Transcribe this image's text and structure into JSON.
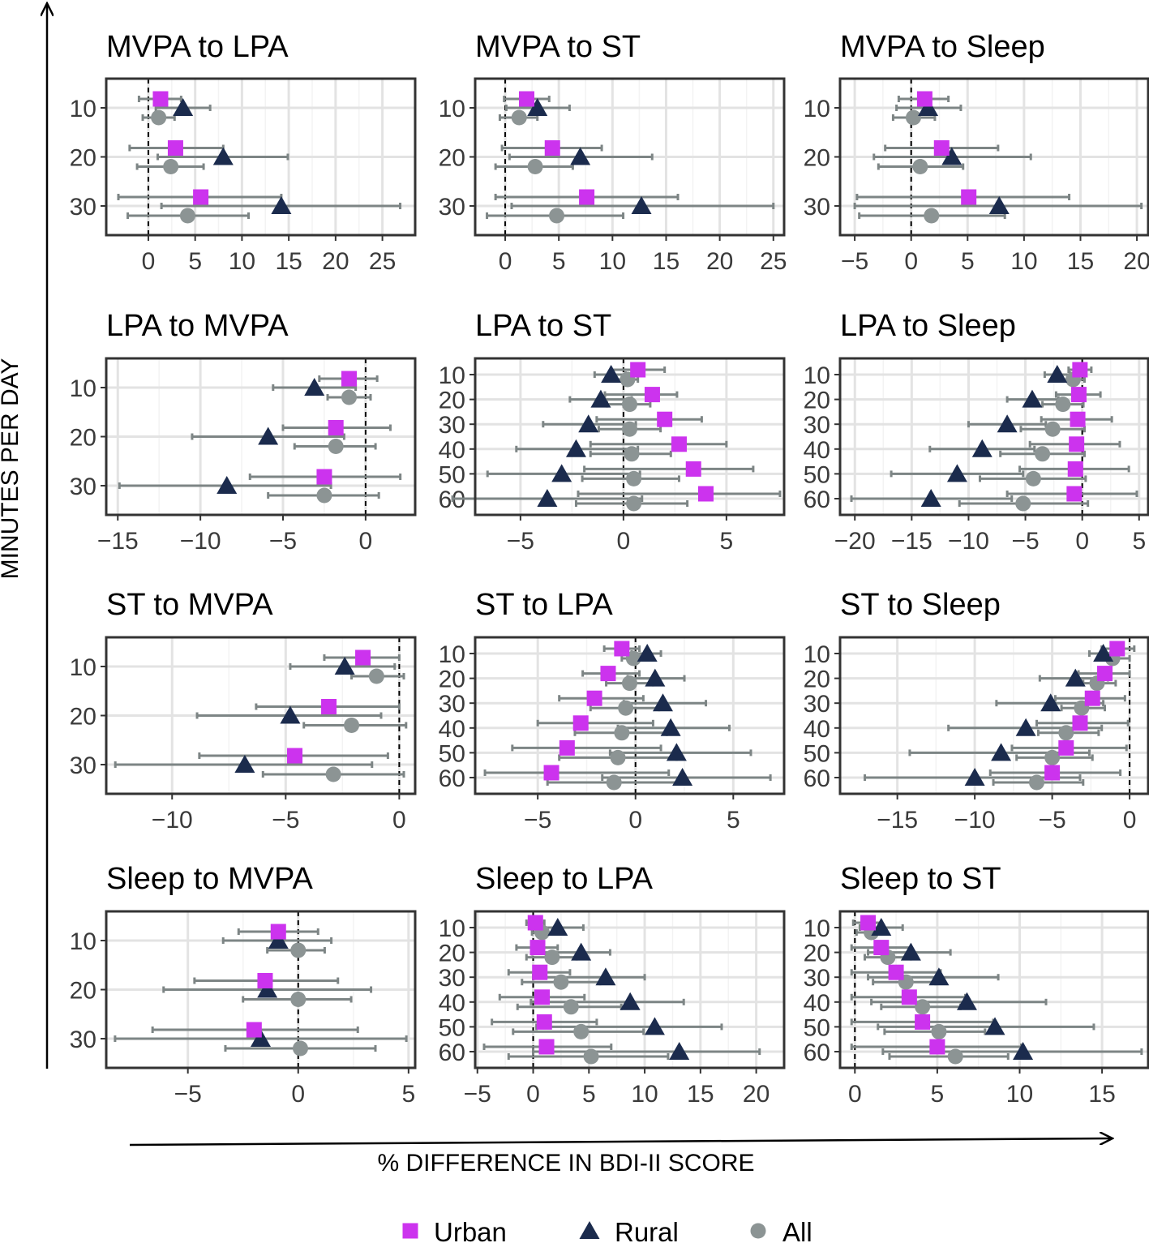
{
  "figure": {
    "ylabel": "MINUTES PER DAY",
    "xlabel": "% DIFFERENCE IN BDI-II SCORE",
    "legend": [
      {
        "name": "Urban",
        "shape": "square",
        "color": "#cc33ee"
      },
      {
        "name": "Rural",
        "shape": "triangle",
        "color": "#1b2b4d"
      },
      {
        "name": "All",
        "shape": "circle",
        "color": "#8c9494"
      }
    ]
  },
  "chart_data": [
    {
      "type": "scatter",
      "title": "MVPA to LPA",
      "xlim": [
        -4.5,
        28.5
      ],
      "xticks": [
        0,
        5,
        10,
        15,
        20,
        25
      ],
      "categories": [
        "10",
        "20",
        "30"
      ],
      "series": [
        {
          "name": "Urban",
          "values": [
            1.3,
            2.9,
            5.6
          ],
          "lower": [
            -1.0,
            -2.0,
            -3.2
          ],
          "upper": [
            3.5,
            8.0,
            14.2
          ]
        },
        {
          "name": "Rural",
          "values": [
            3.7,
            8.0,
            14.2
          ],
          "lower": [
            0.8,
            1.0,
            1.4
          ],
          "upper": [
            6.6,
            14.9,
            26.9
          ]
        },
        {
          "name": "All",
          "values": [
            1.1,
            2.4,
            4.2
          ],
          "lower": [
            -0.6,
            -1.2,
            -2.2
          ],
          "upper": [
            2.8,
            5.9,
            10.7
          ]
        }
      ]
    },
    {
      "type": "scatter",
      "title": "MVPA to ST",
      "xlim": [
        -2.8,
        26.0
      ],
      "xticks": [
        0,
        5,
        10,
        15,
        20,
        25
      ],
      "categories": [
        "10",
        "20",
        "30"
      ],
      "series": [
        {
          "name": "Urban",
          "values": [
            2.0,
            4.4,
            7.6
          ],
          "lower": [
            -0.1,
            -0.3,
            -0.9
          ],
          "upper": [
            4.1,
            9.0,
            16.1
          ]
        },
        {
          "name": "Rural",
          "values": [
            3.0,
            7.0,
            12.7
          ],
          "lower": [
            0.1,
            0.4,
            0.6
          ],
          "upper": [
            6.0,
            13.7,
            25.0
          ]
        },
        {
          "name": "All",
          "values": [
            1.3,
            2.8,
            4.8
          ],
          "lower": [
            -0.5,
            -0.9,
            -1.7
          ],
          "upper": [
            3.0,
            6.3,
            11.0
          ]
        }
      ]
    },
    {
      "type": "scatter",
      "title": "MVPA to Sleep",
      "xlim": [
        -6.3,
        21.0
      ],
      "xticks": [
        -5,
        0,
        5,
        10,
        15,
        20
      ],
      "categories": [
        "10",
        "20",
        "30"
      ],
      "series": [
        {
          "name": "Urban",
          "values": [
            1.2,
            2.7,
            5.1
          ],
          "lower": [
            -1.1,
            -2.3,
            -4.8
          ],
          "upper": [
            3.3,
            7.7,
            14.0
          ]
        },
        {
          "name": "Rural",
          "values": [
            1.5,
            3.6,
            7.8
          ],
          "lower": [
            -1.3,
            -3.3,
            -5.0
          ],
          "upper": [
            4.4,
            10.6,
            20.4
          ]
        },
        {
          "name": "All",
          "values": [
            0.2,
            0.8,
            1.8
          ],
          "lower": [
            -1.6,
            -2.9,
            -4.6
          ],
          "upper": [
            2.1,
            4.6,
            8.3
          ]
        }
      ]
    },
    {
      "type": "scatter",
      "title": "LPA to MVPA",
      "xlim": [
        -15.7,
        3.0
      ],
      "xticks": [
        -15,
        -10,
        -5,
        0
      ],
      "categories": [
        "10",
        "20",
        "30"
      ],
      "series": [
        {
          "name": "Urban",
          "values": [
            -1.0,
            -1.8,
            -2.5
          ],
          "lower": [
            -2.8,
            -5.0,
            -7.0
          ],
          "upper": [
            0.7,
            1.5,
            2.1
          ]
        },
        {
          "name": "Rural",
          "values": [
            -3.1,
            -5.9,
            -8.4
          ],
          "lower": [
            -5.6,
            -10.5,
            -14.9
          ],
          "upper": [
            -0.6,
            -1.3,
            -2.1
          ]
        },
        {
          "name": "All",
          "values": [
            -1.0,
            -1.8,
            -2.5
          ],
          "lower": [
            -2.3,
            -4.3,
            -5.9
          ],
          "upper": [
            0.3,
            0.6,
            0.8
          ]
        }
      ]
    },
    {
      "type": "scatter",
      "title": "LPA to ST",
      "xlim": [
        -7.2,
        7.8
      ],
      "xticks": [
        -5,
        0,
        5
      ],
      "categories": [
        "10",
        "20",
        "30",
        "40",
        "50",
        "60"
      ],
      "series": [
        {
          "name": "Urban",
          "values": [
            0.7,
            1.4,
            2.0,
            2.7,
            3.4,
            4.0
          ],
          "lower": [
            -0.6,
            -0.9,
            -1.3,
            -1.6,
            -1.9,
            -2.2
          ],
          "upper": [
            2.0,
            2.6,
            3.8,
            5.0,
            6.3,
            7.6
          ]
        },
        {
          "name": "Rural",
          "values": [
            -0.6,
            -1.1,
            -1.7,
            -2.3,
            -3.0,
            -3.7
          ],
          "lower": [
            -1.4,
            -2.6,
            -3.9,
            -5.2,
            -6.6,
            -8.3
          ],
          "upper": [
            0.1,
            0.4,
            0.6,
            0.7,
            0.8,
            0.9
          ]
        },
        {
          "name": "All",
          "values": [
            0.2,
            0.3,
            0.3,
            0.4,
            0.5,
            0.5
          ],
          "lower": [
            -0.4,
            -0.8,
            -1.2,
            -1.6,
            -2.0,
            -2.3
          ],
          "upper": [
            0.7,
            1.3,
            1.8,
            2.3,
            2.7,
            3.1
          ]
        }
      ]
    },
    {
      "type": "scatter",
      "title": "LPA to Sleep",
      "xlim": [
        -21.3,
        5.8
      ],
      "xticks": [
        -20,
        -15,
        -10,
        -5,
        0,
        5
      ],
      "categories": [
        "10",
        "20",
        "30",
        "40",
        "50",
        "60"
      ],
      "series": [
        {
          "name": "Urban",
          "values": [
            -0.2,
            -0.3,
            -0.4,
            -0.5,
            -0.6,
            -0.7
          ],
          "lower": [
            -1.2,
            -2.3,
            -3.6,
            -4.6,
            -5.5,
            -6.6
          ],
          "upper": [
            0.8,
            1.6,
            2.6,
            3.3,
            4.1,
            4.8
          ]
        },
        {
          "name": "Rural",
          "values": [
            -2.2,
            -4.4,
            -6.6,
            -8.8,
            -11.0,
            -13.3
          ],
          "lower": [
            -3.3,
            -6.6,
            -10.0,
            -13.4,
            -16.8,
            -20.3
          ],
          "upper": [
            -1.1,
            -2.1,
            -3.2,
            -4.2,
            -5.2,
            -6.2
          ]
        },
        {
          "name": "All",
          "values": [
            -0.8,
            -1.7,
            -2.6,
            -3.5,
            -4.3,
            -5.2
          ],
          "lower": [
            -1.8,
            -3.5,
            -5.4,
            -7.2,
            -9.0,
            -10.8
          ],
          "upper": [
            0.2,
            0.1,
            0.2,
            0.2,
            0.3,
            0.5
          ]
        }
      ]
    },
    {
      "type": "scatter",
      "title": "ST to MVPA",
      "xlim": [
        -12.9,
        0.7
      ],
      "xticks": [
        -10,
        -5,
        0
      ],
      "categories": [
        "10",
        "20",
        "30"
      ],
      "series": [
        {
          "name": "Urban",
          "values": [
            -1.6,
            -3.1,
            -4.6
          ],
          "lower": [
            -3.3,
            -6.3,
            -8.8
          ],
          "upper": [
            0.0,
            0.0,
            -0.5
          ]
        },
        {
          "name": "Rural",
          "values": [
            -2.4,
            -4.8,
            -6.8
          ],
          "lower": [
            -4.8,
            -8.9,
            -12.5
          ],
          "upper": [
            -0.2,
            -0.8,
            -1.2
          ]
        },
        {
          "name": "All",
          "values": [
            -1.0,
            -2.1,
            -2.9
          ],
          "lower": [
            -2.1,
            -4.2,
            -6.0
          ],
          "upper": [
            0.2,
            0.3,
            0.2
          ]
        }
      ]
    },
    {
      "type": "scatter",
      "title": "ST to LPA",
      "xlim": [
        -8.2,
        7.6
      ],
      "xticks": [
        -5,
        0,
        5
      ],
      "categories": [
        "10",
        "20",
        "30",
        "40",
        "50",
        "60"
      ],
      "series": [
        {
          "name": "Urban",
          "values": [
            -0.7,
            -1.4,
            -2.1,
            -2.8,
            -3.5,
            -4.3
          ],
          "lower": [
            -1.6,
            -2.7,
            -3.9,
            -5.0,
            -6.3,
            -7.7
          ],
          "upper": [
            0.2,
            0.2,
            0.4,
            0.9,
            1.3,
            1.7
          ]
        },
        {
          "name": "Rural",
          "values": [
            0.6,
            1.0,
            1.4,
            1.8,
            2.1,
            2.4
          ],
          "lower": [
            -0.2,
            -0.4,
            -0.6,
            -0.9,
            -1.3,
            -1.7
          ],
          "upper": [
            1.3,
            2.5,
            3.6,
            4.8,
            5.9,
            6.9
          ]
        },
        {
          "name": "All",
          "values": [
            -0.1,
            -0.3,
            -0.5,
            -0.7,
            -0.9,
            -1.1
          ],
          "lower": [
            -0.7,
            -1.5,
            -2.3,
            -3.1,
            -3.9,
            -4.5
          ],
          "upper": [
            0.4,
            0.9,
            1.2,
            1.6,
            2.1,
            2.6
          ]
        }
      ]
    },
    {
      "type": "scatter",
      "title": "ST to Sleep",
      "xlim": [
        -18.7,
        1.2
      ],
      "xticks": [
        -15,
        -10,
        -5,
        0
      ],
      "categories": [
        "10",
        "20",
        "30",
        "40",
        "50",
        "60"
      ],
      "series": [
        {
          "name": "Urban",
          "values": [
            -0.8,
            -1.6,
            -2.4,
            -3.2,
            -4.1,
            -5.0
          ],
          "lower": [
            -1.8,
            -3.3,
            -4.8,
            -6.0,
            -7.6,
            -9.0
          ],
          "upper": [
            0.3,
            0.0,
            -0.3,
            -0.1,
            -0.2,
            -0.6
          ]
        },
        {
          "name": "Rural",
          "values": [
            -1.7,
            -3.5,
            -5.1,
            -6.7,
            -8.3,
            -10.0
          ],
          "lower": [
            -2.6,
            -5.8,
            -8.6,
            -11.7,
            -14.2,
            -17.1
          ],
          "upper": [
            -0.8,
            -1.4,
            -1.7,
            -1.8,
            -2.6,
            -3.2
          ]
        },
        {
          "name": "All",
          "values": [
            -1.1,
            -2.1,
            -3.1,
            -4.1,
            -5.0,
            -6.0
          ],
          "lower": [
            -1.6,
            -3.0,
            -4.4,
            -5.9,
            -7.3,
            -8.8
          ],
          "upper": [
            0.0,
            -0.9,
            -1.6,
            -2.0,
            -2.4,
            -3.0
          ]
        }
      ]
    },
    {
      "type": "scatter",
      "title": "Sleep to MVPA",
      "xlim": [
        -8.7,
        5.3
      ],
      "xticks": [
        -5,
        0,
        5
      ],
      "categories": [
        "10",
        "20",
        "30"
      ],
      "series": [
        {
          "name": "Urban",
          "values": [
            -0.9,
            -1.5,
            -2.0
          ],
          "lower": [
            -2.7,
            -4.7,
            -6.6
          ],
          "upper": [
            0.9,
            1.8,
            2.7
          ]
        },
        {
          "name": "Rural",
          "values": [
            -0.9,
            -1.4,
            -1.7
          ],
          "lower": [
            -3.4,
            -6.1,
            -8.3
          ],
          "upper": [
            1.5,
            3.3,
            4.9
          ]
        },
        {
          "name": "All",
          "values": [
            0.0,
            0.0,
            0.1
          ],
          "lower": [
            -1.4,
            -2.5,
            -3.3
          ],
          "upper": [
            1.2,
            2.4,
            3.5
          ]
        }
      ]
    },
    {
      "type": "scatter",
      "title": "Sleep to LPA",
      "xlim": [
        -5.2,
        22.5
      ],
      "xticks": [
        -5,
        0,
        5,
        10,
        15,
        20
      ],
      "categories": [
        "10",
        "20",
        "30",
        "40",
        "50",
        "60"
      ],
      "series": [
        {
          "name": "Urban",
          "values": [
            0.2,
            0.4,
            0.6,
            0.8,
            1.0,
            1.2
          ],
          "lower": [
            -0.6,
            -1.5,
            -2.2,
            -3.0,
            -3.7,
            -4.4
          ],
          "upper": [
            1.0,
            2.2,
            3.3,
            4.6,
            5.7,
            7.0
          ]
        },
        {
          "name": "Rural",
          "values": [
            2.2,
            4.3,
            6.5,
            8.7,
            10.9,
            13.1
          ],
          "lower": [
            -0.1,
            -0.1,
            0.0,
            -0.2,
            0.3,
            0.0
          ],
          "upper": [
            4.5,
            6.9,
            10.0,
            13.5,
            16.9,
            20.3
          ]
        },
        {
          "name": "All",
          "values": [
            0.8,
            1.7,
            2.5,
            3.4,
            4.3,
            5.2
          ],
          "lower": [
            -0.1,
            -0.6,
            -1.0,
            -1.4,
            -1.8,
            -2.2
          ],
          "upper": [
            1.7,
            3.9,
            6.0,
            7.9,
            9.9,
            12.1
          ]
        }
      ]
    },
    {
      "type": "scatter",
      "title": "Sleep to ST",
      "xlim": [
        -0.9,
        17.8
      ],
      "xticks": [
        0,
        5,
        10,
        15
      ],
      "categories": [
        "10",
        "20",
        "30",
        "40",
        "50",
        "60"
      ],
      "series": [
        {
          "name": "Urban",
          "values": [
            0.8,
            1.6,
            2.5,
            3.3,
            4.1,
            5.0
          ],
          "lower": [
            -0.1,
            -0.2,
            -0.2,
            -0.2,
            -0.2,
            -0.2
          ],
          "upper": [
            1.6,
            3.4,
            5.2,
            6.7,
            8.4,
            10.1
          ]
        },
        {
          "name": "Rural",
          "values": [
            1.6,
            3.4,
            5.1,
            6.8,
            8.5,
            10.2
          ],
          "lower": [
            0.3,
            0.8,
            0.8,
            1.0,
            1.4,
            1.7
          ],
          "upper": [
            2.9,
            5.8,
            8.7,
            11.6,
            14.5,
            17.4
          ]
        },
        {
          "name": "All",
          "values": [
            1.0,
            2.0,
            3.1,
            4.1,
            5.1,
            6.1
          ],
          "lower": [
            0.1,
            0.6,
            1.1,
            1.6,
            1.8,
            2.1
          ],
          "upper": [
            1.8,
            3.4,
            4.9,
            6.4,
            7.9,
            9.3
          ]
        }
      ]
    }
  ]
}
